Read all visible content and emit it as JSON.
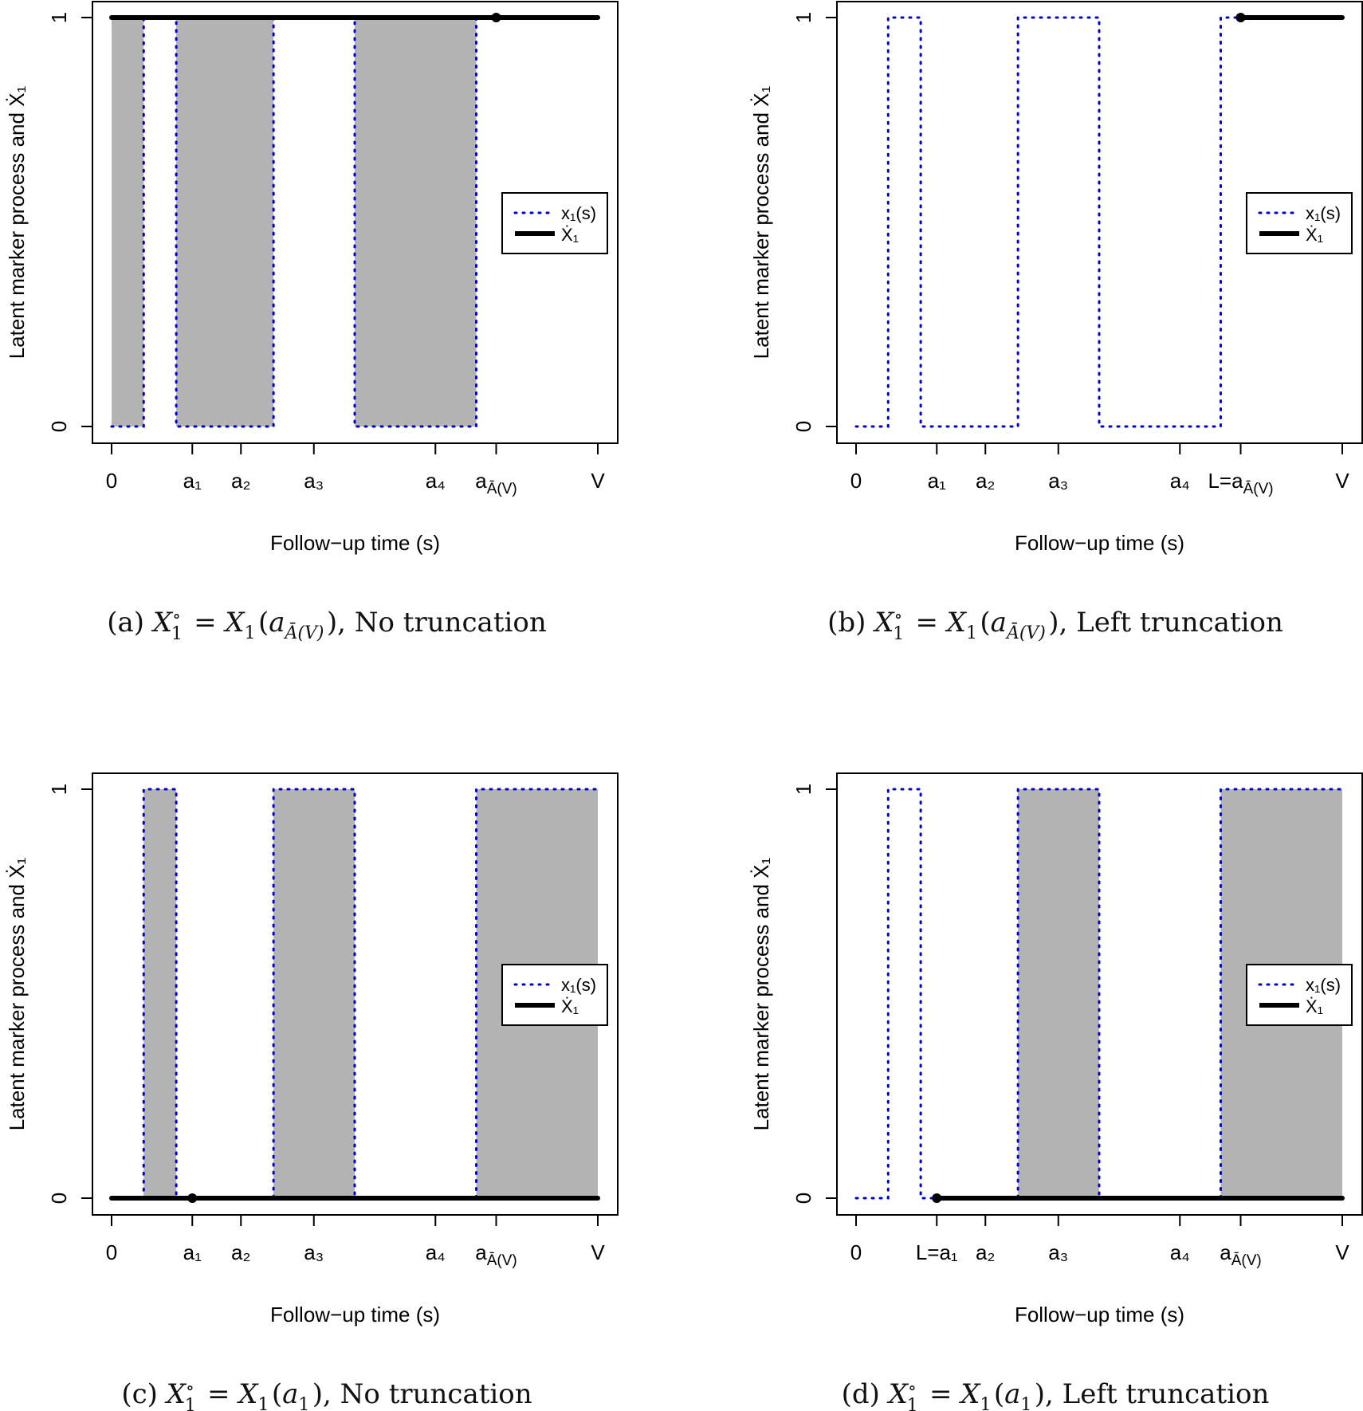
{
  "chart_data": [
    {
      "type": "line",
      "caption": "(a) X_1^∘ = X_1(a_{Ā(V)}), No truncation",
      "xlabel": "Follow−up time (s)",
      "ylabel": "Latent marker process and Ẋ₁",
      "yticks": [
        "0",
        "1"
      ],
      "ylim": [
        0,
        1
      ],
      "xticks": [
        {
          "x": 0,
          "label": "0"
        },
        {
          "x": 0.166,
          "label": "a₁"
        },
        {
          "x": 0.266,
          "label": "a₂"
        },
        {
          "x": 0.416,
          "label": "a₃"
        },
        {
          "x": 0.666,
          "label": "a₄"
        },
        {
          "x": 0.791,
          "label": "a_{Ā(V)}"
        },
        {
          "x": 1,
          "label": "V"
        }
      ],
      "series": [
        {
          "name": "x₁(s)",
          "style": "dotted",
          "color": "#0000cc",
          "x": [
            0,
            0.066,
            0.066,
            0.133,
            0.133,
            0.333,
            0.333,
            0.5,
            0.5,
            0.75,
            0.75,
            1
          ],
          "y": [
            0,
            0,
            1,
            1,
            0,
            0,
            1,
            1,
            0,
            0,
            1,
            1
          ]
        },
        {
          "name": "Ẋ₁",
          "style": "solid",
          "color": "#000000",
          "x": [
            0,
            1
          ],
          "y": [
            1,
            1
          ]
        }
      ],
      "shaded": [
        [
          0,
          0.066
        ],
        [
          0.133,
          0.333
        ],
        [
          0.5,
          0.75
        ]
      ],
      "marker": {
        "x": 0.791,
        "y": 1
      },
      "legend": {
        "position": "right",
        "entries": [
          "x₁(s)",
          "Ẋ₁"
        ]
      }
    },
    {
      "type": "line",
      "caption": "(b) X_1^∘ = X_1(a_{Ā(V)}), Left truncation",
      "xlabel": "Follow−up time (s)",
      "ylabel": "Latent marker process and Ẋ₁",
      "yticks": [
        "0",
        "1"
      ],
      "ylim": [
        0,
        1
      ],
      "xticks": [
        {
          "x": 0,
          "label": "0"
        },
        {
          "x": 0.166,
          "label": "a₁"
        },
        {
          "x": 0.266,
          "label": "a₂"
        },
        {
          "x": 0.416,
          "label": "a₃"
        },
        {
          "x": 0.666,
          "label": "a₄"
        },
        {
          "x": 0.791,
          "label": "L=a_{Ā(V)}"
        },
        {
          "x": 1,
          "label": "V"
        }
      ],
      "series": [
        {
          "name": "x₁(s)",
          "style": "dotted",
          "color": "#0000cc",
          "x": [
            0,
            0.066,
            0.066,
            0.133,
            0.133,
            0.333,
            0.333,
            0.5,
            0.5,
            0.75,
            0.75,
            1
          ],
          "y": [
            0,
            0,
            1,
            1,
            0,
            0,
            1,
            1,
            0,
            0,
            1,
            1
          ]
        },
        {
          "name": "Ẋ₁",
          "style": "solid",
          "color": "#000000",
          "x": [
            0.791,
            1
          ],
          "y": [
            1,
            1
          ]
        }
      ],
      "shaded": [],
      "marker": {
        "x": 0.791,
        "y": 1
      },
      "legend": {
        "position": "right",
        "entries": [
          "x₁(s)",
          "Ẋ₁"
        ]
      }
    },
    {
      "type": "line",
      "caption": "(c) X_1^∘ = X_1(a_1), No truncation",
      "xlabel": "Follow−up time (s)",
      "ylabel": "Latent marker process and Ẋ₁",
      "yticks": [
        "0",
        "1"
      ],
      "ylim": [
        0,
        1
      ],
      "xticks": [
        {
          "x": 0,
          "label": "0"
        },
        {
          "x": 0.166,
          "label": "a₁"
        },
        {
          "x": 0.266,
          "label": "a₂"
        },
        {
          "x": 0.416,
          "label": "a₃"
        },
        {
          "x": 0.666,
          "label": "a₄"
        },
        {
          "x": 0.791,
          "label": "a_{Ā(V)}"
        },
        {
          "x": 1,
          "label": "V"
        }
      ],
      "series": [
        {
          "name": "x₁(s)",
          "style": "dotted",
          "color": "#0000cc",
          "x": [
            0,
            0.066,
            0.066,
            0.133,
            0.133,
            0.333,
            0.333,
            0.5,
            0.5,
            0.75,
            0.75,
            1
          ],
          "y": [
            0,
            0,
            1,
            1,
            0,
            0,
            1,
            1,
            0,
            0,
            1,
            1
          ]
        },
        {
          "name": "Ẋ₁",
          "style": "solid",
          "color": "#000000",
          "x": [
            0,
            1
          ],
          "y": [
            0,
            0
          ]
        }
      ],
      "shaded": [
        [
          0.066,
          0.133
        ],
        [
          0.333,
          0.5
        ],
        [
          0.75,
          1
        ]
      ],
      "marker": {
        "x": 0.166,
        "y": 0
      },
      "legend": {
        "position": "right",
        "entries": [
          "x₁(s)",
          "Ẋ₁"
        ]
      }
    },
    {
      "type": "line",
      "caption": "(d) X_1^∘ = X_1(a_1), Left truncation",
      "xlabel": "Follow−up time (s)",
      "ylabel": "Latent marker process and Ẋ₁",
      "yticks": [
        "0",
        "1"
      ],
      "ylim": [
        0,
        1
      ],
      "xticks": [
        {
          "x": 0,
          "label": "0"
        },
        {
          "x": 0.166,
          "label": "L=a₁"
        },
        {
          "x": 0.266,
          "label": "a₂"
        },
        {
          "x": 0.416,
          "label": "a₃"
        },
        {
          "x": 0.666,
          "label": "a₄"
        },
        {
          "x": 0.791,
          "label": "a_{Ā(V)}"
        },
        {
          "x": 1,
          "label": "V"
        }
      ],
      "series": [
        {
          "name": "x₁(s)",
          "style": "dotted",
          "color": "#0000cc",
          "x": [
            0,
            0.066,
            0.066,
            0.133,
            0.133,
            0.333,
            0.333,
            0.5,
            0.5,
            0.75,
            0.75,
            1
          ],
          "y": [
            0,
            0,
            1,
            1,
            0,
            0,
            1,
            1,
            0,
            0,
            1,
            1
          ]
        },
        {
          "name": "Ẋ₁",
          "style": "solid",
          "color": "#000000",
          "x": [
            0.166,
            1
          ],
          "y": [
            0,
            0
          ]
        }
      ],
      "shaded": [
        [
          0.333,
          0.5
        ],
        [
          0.75,
          1
        ]
      ],
      "marker": {
        "x": 0.166,
        "y": 0
      },
      "legend": {
        "position": "right",
        "entries": [
          "x₁(s)",
          "Ẋ₁"
        ]
      }
    }
  ],
  "colors": {
    "shade": "#b3b3b3",
    "dotted": "#0000cc",
    "solid": "#000000",
    "frame": "#000000"
  }
}
